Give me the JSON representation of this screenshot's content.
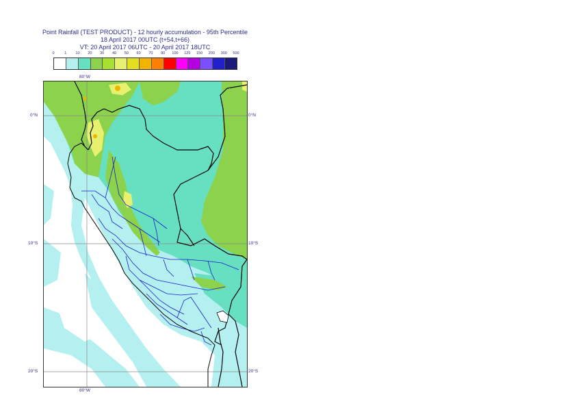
{
  "title": {
    "line1": "Point Rainfall (TEST PRODUCT) - 12 hourly accumulation - 95th Percentile",
    "line2": "18 April 2017 00UTC (t+54,t+66)",
    "line3": "VT: 20 April 2017 06UTC - 20 April 2017 18UTC"
  },
  "legend": {
    "ticks": [
      "0",
      "1",
      "10",
      "20",
      "30",
      "40",
      "50",
      "60",
      "70",
      "80",
      "100",
      "125",
      "150",
      "200",
      "300",
      "500"
    ],
    "colors": [
      "#ffffff",
      "#b4f0f0",
      "#66e0c0",
      "#8cd24c",
      "#a8e032",
      "#e8f070",
      "#e0e020",
      "#f0b400",
      "#ff8000",
      "#ff0000",
      "#ff00ff",
      "#b400e0",
      "#7850ff",
      "#2020c8",
      "#1a1a7a"
    ]
  },
  "axes": {
    "lon_top": "80°W",
    "lon_bottom": "80°W",
    "lat_left": [
      "0°N",
      "10°S",
      "20°S"
    ],
    "lat_right": [
      "0°N",
      "10°S",
      "20°S"
    ]
  },
  "map_colors": {
    "sea_light": "#b4f0f0",
    "teal": "#66e0c0",
    "green": "#8cd24c",
    "yellow": "#e8f070",
    "orange": "#f0b400",
    "border_country": "#000000",
    "border_region": "#1a1acc",
    "grid": "#888888"
  }
}
